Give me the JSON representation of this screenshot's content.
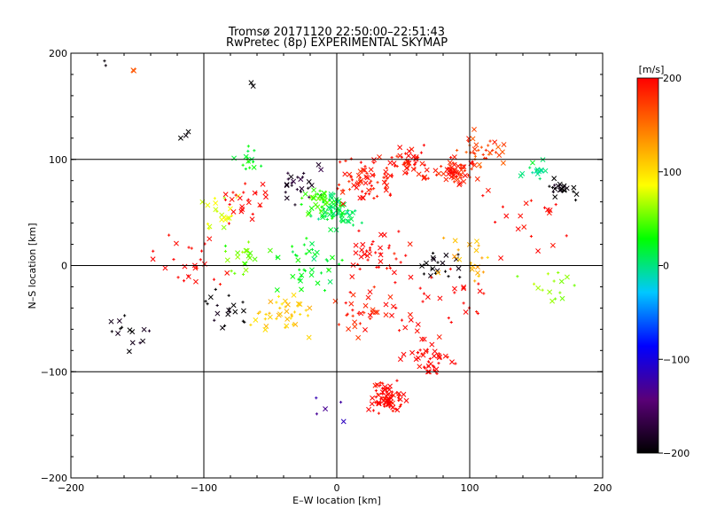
{
  "chart_data": {
    "type": "scatter",
    "title": "Tromsø 20171120 22:50:00–22:51:43",
    "subtitle": "RwPretec (8p) EXPERIMENTAL SKYMAP",
    "xlabel": "E–W location [km]",
    "ylabel": "N–S location [km]",
    "xlim": [
      -200,
      200
    ],
    "ylim": [
      -200,
      200
    ],
    "xticks": [
      -200,
      -100,
      0,
      100,
      200
    ],
    "yticks": [
      -200,
      -100,
      0,
      100,
      200
    ],
    "grid_lines": [
      -100,
      0,
      100
    ],
    "grid": true,
    "markers": [
      "x",
      "+"
    ],
    "colorbar": {
      "label": "[m/s]",
      "range": [
        -200,
        200
      ],
      "ticks": [
        200,
        100,
        0,
        -100,
        -200
      ],
      "colormap": [
        "#000000",
        "#5a0078",
        "#0000ff",
        "#00c8ff",
        "#00ff00",
        "#ffff00",
        "#ff8000",
        "#ff0000"
      ],
      "placement": "right"
    },
    "clusters": [
      {
        "x": -175,
        "y": 190,
        "spread": 3,
        "count": 2,
        "velocity": -200
      },
      {
        "x": -152,
        "y": 185,
        "spread": 3,
        "count": 2,
        "velocity": 150
      },
      {
        "x": -115,
        "y": 125,
        "spread": 5,
        "count": 3,
        "velocity": -200
      },
      {
        "x": -65,
        "y": 170,
        "spread": 4,
        "count": 2,
        "velocity": -200
      },
      {
        "x": -65,
        "y": 100,
        "spread": 10,
        "count": 15,
        "velocity": 20
      },
      {
        "x": -90,
        "y": 50,
        "spread": 15,
        "count": 20,
        "velocity": 80
      },
      {
        "x": -70,
        "y": 60,
        "spread": 20,
        "count": 25,
        "velocity": 200
      },
      {
        "x": -30,
        "y": 80,
        "spread": 15,
        "count": 25,
        "velocity": -180
      },
      {
        "x": -10,
        "y": 60,
        "spread": 12,
        "count": 40,
        "velocity": 40
      },
      {
        "x": 0,
        "y": 50,
        "spread": 14,
        "count": 60,
        "velocity": 10
      },
      {
        "x": 20,
        "y": 80,
        "spread": 20,
        "count": 70,
        "velocity": 190
      },
      {
        "x": 55,
        "y": 95,
        "spread": 15,
        "count": 50,
        "velocity": 195
      },
      {
        "x": 90,
        "y": 88,
        "spread": 12,
        "count": 60,
        "velocity": 190
      },
      {
        "x": 110,
        "y": 110,
        "spread": 15,
        "count": 35,
        "velocity": 170
      },
      {
        "x": 150,
        "y": 90,
        "spread": 10,
        "count": 15,
        "velocity": 0
      },
      {
        "x": 170,
        "y": 75,
        "spread": 10,
        "count": 25,
        "velocity": -200
      },
      {
        "x": -110,
        "y": 0,
        "spread": 25,
        "count": 25,
        "velocity": 200
      },
      {
        "x": -70,
        "y": 5,
        "spread": 15,
        "count": 20,
        "velocity": 50
      },
      {
        "x": -80,
        "y": -40,
        "spread": 15,
        "count": 20,
        "velocity": -200
      },
      {
        "x": -160,
        "y": -65,
        "spread": 15,
        "count": 15,
        "velocity": -190
      },
      {
        "x": -40,
        "y": -40,
        "spread": 20,
        "count": 40,
        "velocity": 110
      },
      {
        "x": -20,
        "y": 0,
        "spread": 20,
        "count": 40,
        "velocity": 20
      },
      {
        "x": 30,
        "y": 10,
        "spread": 20,
        "count": 40,
        "velocity": 200
      },
      {
        "x": 20,
        "y": -40,
        "spread": 20,
        "count": 30,
        "velocity": 190
      },
      {
        "x": 80,
        "y": 0,
        "spread": 15,
        "count": 20,
        "velocity": -200
      },
      {
        "x": 100,
        "y": 10,
        "spread": 20,
        "count": 20,
        "velocity": 120
      },
      {
        "x": 70,
        "y": -90,
        "spread": 15,
        "count": 40,
        "velocity": 200
      },
      {
        "x": 38,
        "y": -125,
        "spread": 12,
        "count": 80,
        "velocity": 200
      },
      {
        "x": 80,
        "y": -40,
        "spread": 40,
        "count": 40,
        "velocity": 200
      },
      {
        "x": 160,
        "y": -20,
        "spread": 20,
        "count": 15,
        "velocity": 60
      },
      {
        "x": 140,
        "y": 40,
        "spread": 30,
        "count": 20,
        "velocity": 200
      },
      {
        "x": -10,
        "y": -130,
        "spread": 15,
        "count": 5,
        "velocity": -120
      }
    ]
  }
}
